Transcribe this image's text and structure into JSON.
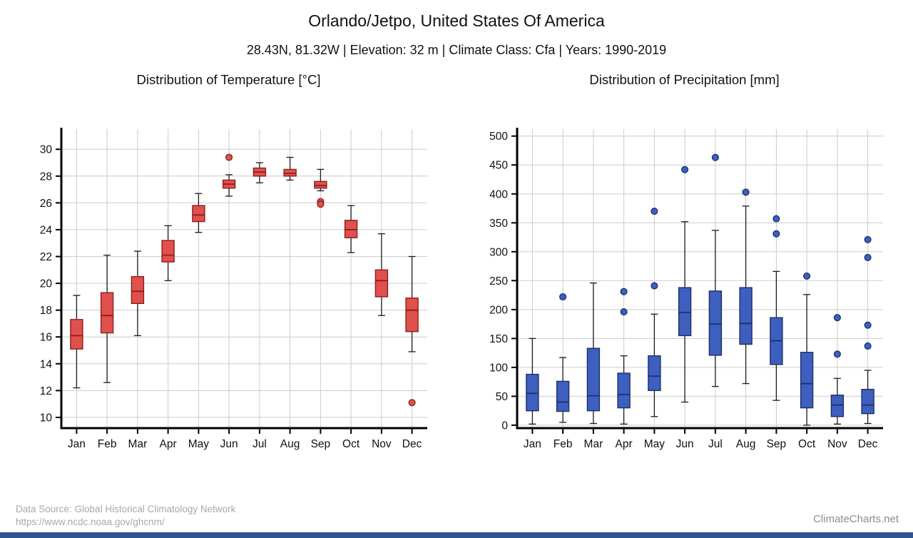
{
  "header": {
    "title": "Orlando/Jetpo, United States Of America",
    "subtitle": "28.43N, 81.32W | Elevation: 32 m | Climate Class: Cfa | Years: 1990-2019"
  },
  "footer": {
    "source_line1": "Data Source: Global Historical Climatology Network",
    "source_line2": "https://www.ncdc.noaa.gov/ghcnm/",
    "brand": "ClimateCharts.net"
  },
  "colors": {
    "temperature_box": "#e0504d",
    "temperature_stroke": "#8c1f1c",
    "precipitation_box": "#3d5fc0",
    "precipitation_stroke": "#1e2f66",
    "grid": "#cccccc",
    "axis": "#000000",
    "bottom_bar": "#35538f"
  },
  "chart_data": [
    {
      "type": "boxplot",
      "title": "Distribution of Temperature [°C]",
      "xlabel": "",
      "ylabel": "",
      "grid": true,
      "categories": [
        "Jan",
        "Feb",
        "Mar",
        "Apr",
        "May",
        "Jun",
        "Jul",
        "Aug",
        "Sep",
        "Oct",
        "Nov",
        "Dec"
      ],
      "yticks": [
        10,
        12,
        14,
        16,
        18,
        20,
        22,
        24,
        26,
        28,
        30
      ],
      "ymin": 9.2,
      "ymax": 31.5,
      "fill": "#e0504d",
      "stroke": "#8c1f1c",
      "series": [
        {
          "month": "Jan",
          "low": 12.2,
          "q1": 15.1,
          "median": 16.1,
          "q3": 17.3,
          "high": 19.1,
          "outliers": []
        },
        {
          "month": "Feb",
          "low": 12.6,
          "q1": 16.3,
          "median": 17.6,
          "q3": 19.3,
          "high": 22.1,
          "outliers": []
        },
        {
          "month": "Mar",
          "low": 16.1,
          "q1": 18.5,
          "median": 19.4,
          "q3": 20.5,
          "high": 22.4,
          "outliers": []
        },
        {
          "month": "Apr",
          "low": 20.2,
          "q1": 21.6,
          "median": 22.1,
          "q3": 23.2,
          "high": 24.3,
          "outliers": []
        },
        {
          "month": "May",
          "low": 23.8,
          "q1": 24.6,
          "median": 25.1,
          "q3": 25.8,
          "high": 26.7,
          "outliers": []
        },
        {
          "month": "Jun",
          "low": 26.5,
          "q1": 27.1,
          "median": 27.4,
          "q3": 27.7,
          "high": 28.1,
          "outliers": [
            29.4
          ]
        },
        {
          "month": "Jul",
          "low": 27.5,
          "q1": 28.0,
          "median": 28.3,
          "q3": 28.6,
          "high": 29.0,
          "outliers": []
        },
        {
          "month": "Aug",
          "low": 27.7,
          "q1": 28.0,
          "median": 28.2,
          "q3": 28.5,
          "high": 29.4,
          "outliers": []
        },
        {
          "month": "Sep",
          "low": 26.9,
          "q1": 27.1,
          "median": 27.3,
          "q3": 27.6,
          "high": 28.5,
          "outliers": [
            26.1,
            25.9
          ]
        },
        {
          "month": "Oct",
          "low": 22.3,
          "q1": 23.4,
          "median": 24.0,
          "q3": 24.7,
          "high": 25.8,
          "outliers": []
        },
        {
          "month": "Nov",
          "low": 17.6,
          "q1": 19.0,
          "median": 20.2,
          "q3": 21.0,
          "high": 23.7,
          "outliers": []
        },
        {
          "month": "Dec",
          "low": 14.9,
          "q1": 16.4,
          "median": 18.0,
          "q3": 18.9,
          "high": 22.0,
          "outliers": [
            11.1
          ]
        }
      ]
    },
    {
      "type": "boxplot",
      "title": "Distribution of Precipitation [mm]",
      "xlabel": "",
      "ylabel": "",
      "grid": true,
      "categories": [
        "Jan",
        "Feb",
        "Mar",
        "Apr",
        "May",
        "Jun",
        "Jul",
        "Aug",
        "Sep",
        "Oct",
        "Nov",
        "Dec"
      ],
      "yticks": [
        0,
        50,
        100,
        150,
        200,
        250,
        300,
        350,
        400,
        450,
        500
      ],
      "ymin": -5,
      "ymax": 512,
      "fill": "#3d5fc0",
      "stroke": "#1e2f66",
      "series": [
        {
          "month": "Jan",
          "low": 2,
          "q1": 25,
          "median": 55,
          "q3": 88,
          "high": 150,
          "outliers": []
        },
        {
          "month": "Feb",
          "low": 5,
          "q1": 24,
          "median": 40,
          "q3": 76,
          "high": 117,
          "outliers": [
            222
          ]
        },
        {
          "month": "Mar",
          "low": 3,
          "q1": 25,
          "median": 51,
          "q3": 133,
          "high": 246,
          "outliers": []
        },
        {
          "month": "Apr",
          "low": 2,
          "q1": 30,
          "median": 53,
          "q3": 90,
          "high": 120,
          "outliers": [
            196,
            231
          ]
        },
        {
          "month": "May",
          "low": 15,
          "q1": 60,
          "median": 85,
          "q3": 120,
          "high": 192,
          "outliers": [
            241,
            370
          ]
        },
        {
          "month": "Jun",
          "low": 40,
          "q1": 155,
          "median": 195,
          "q3": 238,
          "high": 352,
          "outliers": [
            442
          ]
        },
        {
          "month": "Jul",
          "low": 67,
          "q1": 121,
          "median": 175,
          "q3": 232,
          "high": 337,
          "outliers": [
            463
          ]
        },
        {
          "month": "Aug",
          "low": 72,
          "q1": 140,
          "median": 176,
          "q3": 238,
          "high": 379,
          "outliers": [
            403
          ]
        },
        {
          "month": "Sep",
          "low": 43,
          "q1": 105,
          "median": 146,
          "q3": 186,
          "high": 266,
          "outliers": [
            331,
            357
          ]
        },
        {
          "month": "Oct",
          "low": 0,
          "q1": 30,
          "median": 72,
          "q3": 126,
          "high": 226,
          "outliers": [
            258
          ]
        },
        {
          "month": "Nov",
          "low": 2,
          "q1": 15,
          "median": 35,
          "q3": 52,
          "high": 81,
          "outliers": [
            123,
            186
          ]
        },
        {
          "month": "Dec",
          "low": 3,
          "q1": 20,
          "median": 35,
          "q3": 62,
          "high": 95,
          "outliers": [
            137,
            173,
            290,
            321
          ]
        }
      ]
    }
  ]
}
